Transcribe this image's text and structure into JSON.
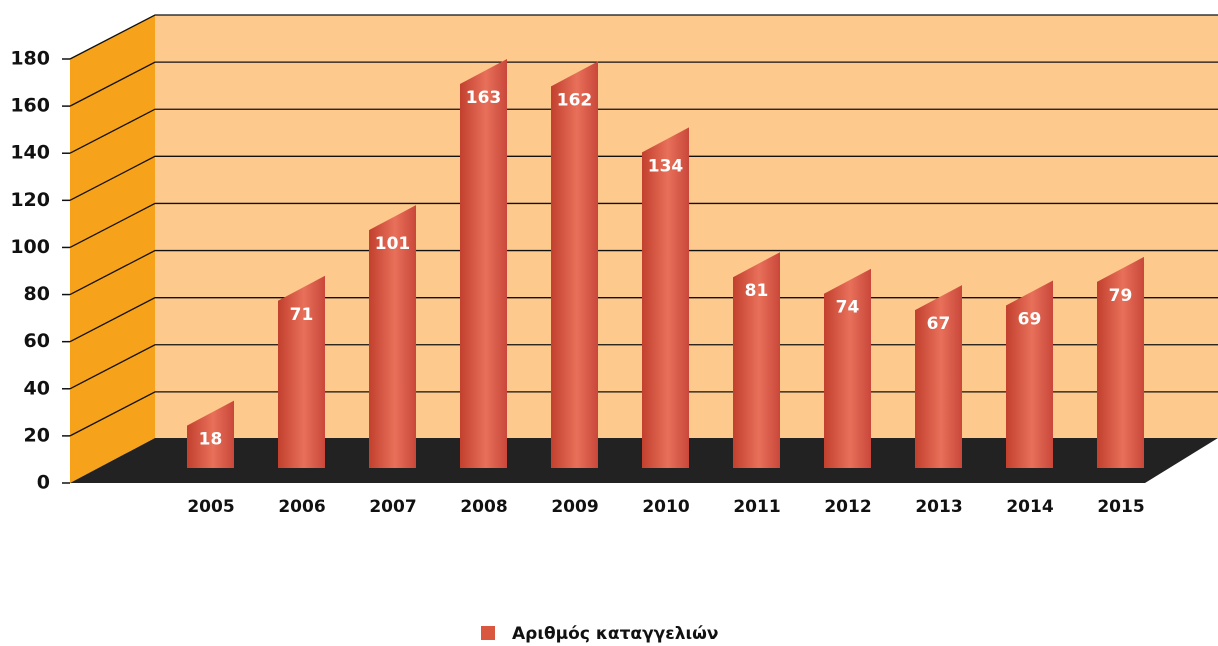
{
  "chart_data": {
    "type": "bar",
    "categories": [
      "2005",
      "2006",
      "2007",
      "2008",
      "2009",
      "2010",
      "2011",
      "2012",
      "2013",
      "2014",
      "2015"
    ],
    "series": [
      {
        "name": "Αριθμός καταγγελιών",
        "color": "#d9573f",
        "values": [
          18,
          71,
          101,
          163,
          162,
          134,
          81,
          74,
          67,
          69,
          79
        ]
      }
    ],
    "ylim": [
      0,
      180
    ],
    "yticks": [
      0,
      20,
      40,
      60,
      80,
      100,
      120,
      140,
      160,
      180
    ],
    "grid": true,
    "legend": "bottom"
  }
}
